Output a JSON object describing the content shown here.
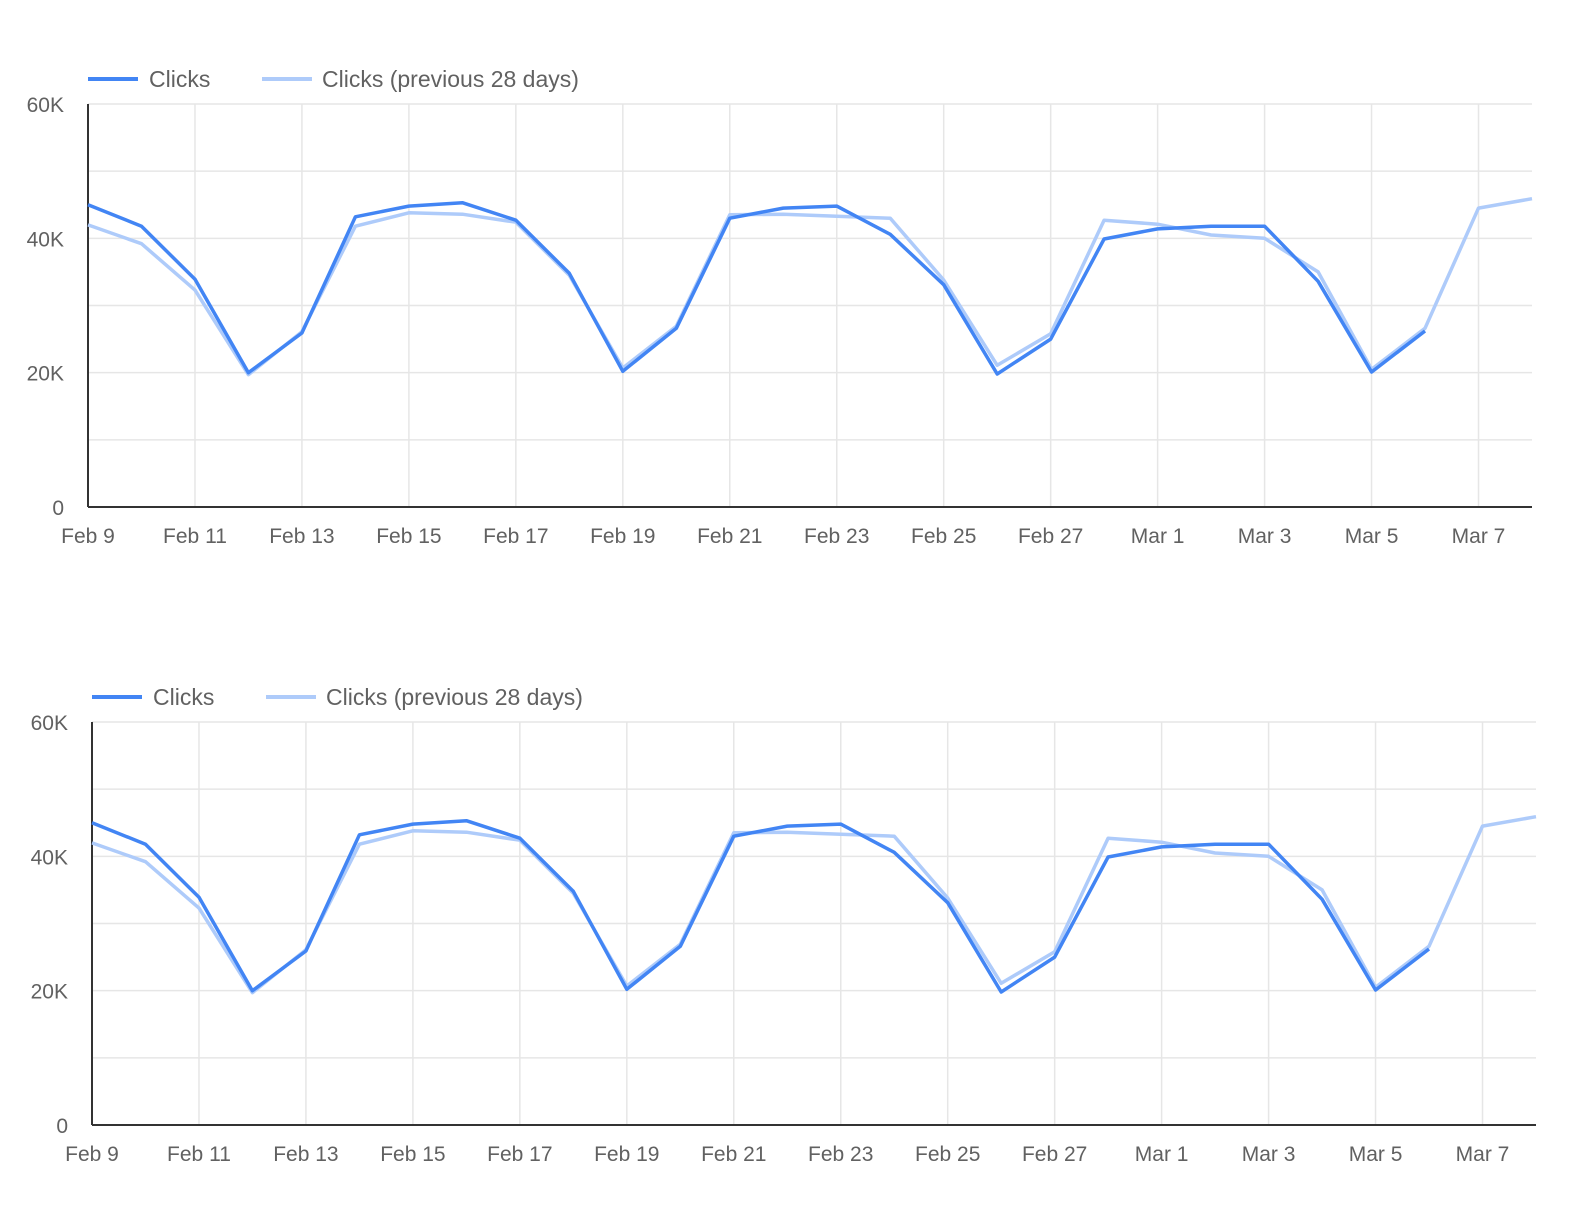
{
  "colors": {
    "current": "#4285f4",
    "previous": "#aecbfa",
    "grid": "#e6e6e6",
    "axis": "#333333",
    "text": "#616161"
  },
  "chart_data": [
    {
      "type": "line",
      "legend_position": "top-left",
      "grid": true,
      "ylim": [
        0,
        60000
      ],
      "yticks": [
        0,
        20000,
        40000,
        60000
      ],
      "ytick_labels": [
        "0",
        "20K",
        "40K",
        "60K"
      ],
      "x": [
        "Feb 9",
        "Feb 10",
        "Feb 11",
        "Feb 12",
        "Feb 13",
        "Feb 14",
        "Feb 15",
        "Feb 16",
        "Feb 17",
        "Feb 18",
        "Feb 19",
        "Feb 20",
        "Feb 21",
        "Feb 22",
        "Feb 23",
        "Feb 24",
        "Feb 25",
        "Feb 26",
        "Feb 27",
        "Feb 28",
        "Mar 1",
        "Mar 2",
        "Mar 3",
        "Mar 4",
        "Mar 5",
        "Mar 6",
        "Mar 7",
        "Mar 8"
      ],
      "xtick_labels": [
        "Feb 9",
        "Feb 11",
        "Feb 13",
        "Feb 15",
        "Feb 17",
        "Feb 19",
        "Feb 21",
        "Feb 23",
        "Feb 25",
        "Feb 27",
        "Mar 1",
        "Mar 3",
        "Mar 5",
        "Mar 7"
      ],
      "series": [
        {
          "name": "Clicks",
          "values": [
            45000,
            41800,
            33900,
            20000,
            25900,
            43200,
            44800,
            45300,
            42700,
            34800,
            20200,
            26600,
            43000,
            44500,
            44800,
            40600,
            33100,
            19800,
            25000,
            39900,
            41400,
            41800,
            41800,
            33600,
            20100,
            26200,
            null,
            null
          ]
        },
        {
          "name": "Clicks (previous 28 days)",
          "values": [
            42000,
            39200,
            32300,
            19700,
            26100,
            41800,
            43800,
            43600,
            42400,
            34500,
            20700,
            26900,
            43500,
            43600,
            43300,
            43000,
            33800,
            21100,
            25800,
            42700,
            42100,
            40500,
            40000,
            35000,
            20500,
            26600,
            44500,
            45900
          ]
        }
      ]
    },
    {
      "type": "line",
      "legend_position": "top-left",
      "grid": true,
      "ylim": [
        0,
        60000
      ],
      "yticks": [
        0,
        20000,
        40000,
        60000
      ],
      "ytick_labels": [
        "0",
        "20K",
        "40K",
        "60K"
      ],
      "x": [
        "Feb 9",
        "Feb 10",
        "Feb 11",
        "Feb 12",
        "Feb 13",
        "Feb 14",
        "Feb 15",
        "Feb 16",
        "Feb 17",
        "Feb 18",
        "Feb 19",
        "Feb 20",
        "Feb 21",
        "Feb 22",
        "Feb 23",
        "Feb 24",
        "Feb 25",
        "Feb 26",
        "Feb 27",
        "Feb 28",
        "Mar 1",
        "Mar 2",
        "Mar 3",
        "Mar 4",
        "Mar 5",
        "Mar 6",
        "Mar 7",
        "Mar 8"
      ],
      "xtick_labels": [
        "Feb 9",
        "Feb 11",
        "Feb 13",
        "Feb 15",
        "Feb 17",
        "Feb 19",
        "Feb 21",
        "Feb 23",
        "Feb 25",
        "Feb 27",
        "Mar 1",
        "Mar 3",
        "Mar 5",
        "Mar 7"
      ],
      "series": [
        {
          "name": "Clicks",
          "values": [
            45000,
            41800,
            33900,
            20000,
            25900,
            43200,
            44800,
            45300,
            42700,
            34800,
            20200,
            26600,
            43000,
            44500,
            44800,
            40600,
            33100,
            19800,
            25000,
            39900,
            41400,
            41800,
            41800,
            33600,
            20100,
            26200,
            null,
            null
          ]
        },
        {
          "name": "Clicks (previous 28 days)",
          "values": [
            42000,
            39200,
            32300,
            19700,
            26100,
            41800,
            43800,
            43600,
            42400,
            34500,
            20700,
            26900,
            43500,
            43600,
            43300,
            43000,
            33800,
            21100,
            25800,
            42700,
            42100,
            40500,
            40000,
            35000,
            20500,
            26600,
            44500,
            45900
          ]
        }
      ]
    }
  ]
}
